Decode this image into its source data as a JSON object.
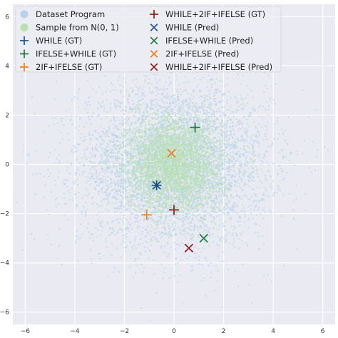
{
  "chart_data": {
    "type": "scatter",
    "title": "",
    "xlabel": "",
    "ylabel": "",
    "xlim": [
      -6.5,
      6.5
    ],
    "ylim": [
      -6.5,
      6.5
    ],
    "x_ticks": [
      -6,
      -4,
      -2,
      0,
      2,
      4,
      6
    ],
    "y_ticks": [
      -6,
      -4,
      -2,
      0,
      2,
      4,
      6
    ],
    "x_tick_labels": [
      "−6",
      "−4",
      "−2",
      "0",
      "2",
      "4",
      "6"
    ],
    "y_tick_labels": [
      "−6",
      "−4",
      "−2",
      "0",
      "2",
      "4",
      "6"
    ],
    "grid": true,
    "background": "#eaeaf2",
    "legend_position": "top-left",
    "clouds": [
      {
        "label": "Dataset Program",
        "color": "#b7d3ea",
        "distribution": "gaussian",
        "center": [
          0.0,
          0.0
        ],
        "std": [
          1.9,
          1.65
        ],
        "count": 5200
      },
      {
        "label": "Sample from N(0, 1)",
        "color": "#b8e0b0",
        "distribution": "gaussian",
        "center": [
          0.0,
          0.0
        ],
        "std": [
          1.0,
          1.0
        ],
        "count": 3000
      }
    ],
    "points": [
      {
        "label": "WHILE (GT)",
        "marker": "plus",
        "color": "#1f4e8c",
        "x": -0.7,
        "y": -0.85
      },
      {
        "label": "IFELSE+WHILE (GT)",
        "marker": "plus",
        "color": "#1e7a3c",
        "x": 0.85,
        "y": 1.5
      },
      {
        "label": "2IF+IFELSE (GT)",
        "marker": "plus",
        "color": "#f07d20",
        "x": -1.1,
        "y": -2.05
      },
      {
        "label": "WHILE+2IF+IFELSE (GT)",
        "marker": "plus",
        "color": "#8b1a1a",
        "x": 0.0,
        "y": -1.85
      },
      {
        "label": "WHILE (Pred)",
        "marker": "x",
        "color": "#1f4e8c",
        "x": -0.7,
        "y": -0.85
      },
      {
        "label": "IFELSE+WHILE (Pred)",
        "marker": "x",
        "color": "#1e7a3c",
        "x": 1.2,
        "y": -3.0
      },
      {
        "label": "2IF+IFELSE (Pred)",
        "marker": "x",
        "color": "#f07d20",
        "x": -0.1,
        "y": 0.45
      },
      {
        "label": "WHILE+2IF+IFELSE (Pred)",
        "marker": "x",
        "color": "#8b1a1a",
        "x": 0.6,
        "y": -3.4
      }
    ],
    "legend": {
      "columns": [
        [
          {
            "label": "Dataset Program",
            "marker": "dot",
            "color": "#b7d3ea"
          },
          {
            "label": "Sample from N(0, 1)",
            "marker": "dot",
            "color": "#b8e0b0"
          },
          {
            "label": "WHILE (GT)",
            "marker": "plus",
            "color": "#1f4e8c"
          },
          {
            "label": "IFELSE+WHILE (GT)",
            "marker": "plus",
            "color": "#1e7a3c"
          },
          {
            "label": "2IF+IFELSE (GT)",
            "marker": "plus",
            "color": "#f07d20"
          }
        ],
        [
          {
            "label": "WHILE+2IF+IFELSE (GT)",
            "marker": "plus",
            "color": "#8b1a1a"
          },
          {
            "label": "WHILE (Pred)",
            "marker": "x",
            "color": "#1f4e8c"
          },
          {
            "label": "IFELSE+WHILE (Pred)",
            "marker": "x",
            "color": "#1e7a3c"
          },
          {
            "label": "2IF+IFELSE (Pred)",
            "marker": "x",
            "color": "#f07d20"
          },
          {
            "label": "WHILE+2IF+IFELSE (Pred)",
            "marker": "x",
            "color": "#8b1a1a"
          }
        ]
      ]
    }
  }
}
